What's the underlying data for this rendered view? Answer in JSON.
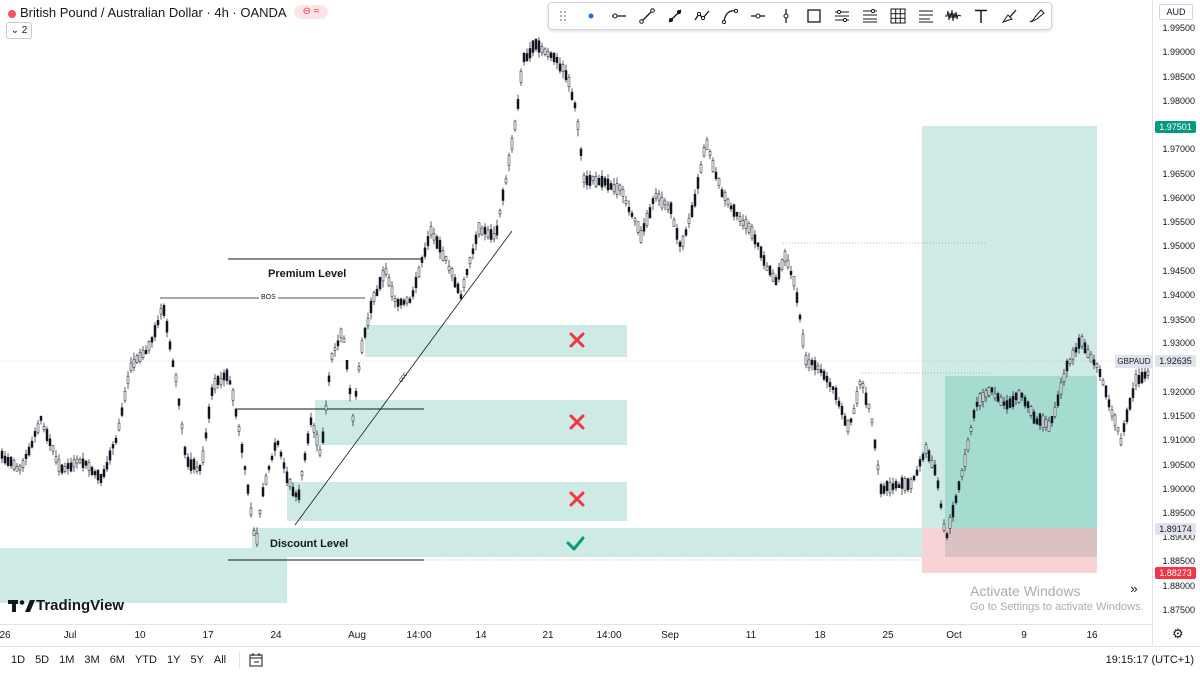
{
  "header": {
    "title": "British Pound / Australian Dollar · 4h · OANDA",
    "pill": "⊖ ≈",
    "indicator_count": "⌄ 2",
    "currency": "AUD"
  },
  "drawing_toolbar": {
    "tools": [
      "drag-handle-icon",
      "dot-icon",
      "horizontal-ray-icon",
      "trend-line-icon",
      "arrow-line-icon",
      "path-icon",
      "curve-icon",
      "horizontal-line-icon",
      "vertical-line-icon",
      "rectangle-icon",
      "parallel-channel-icon",
      "fib-retracement-icon",
      "grid-icon",
      "lines-icon",
      "pitchfork-icon",
      "text-icon",
      "brush-icon",
      "highlighter-icon"
    ]
  },
  "annotations": {
    "premium_level": "Premium Level",
    "discount_level": "Discount Level",
    "bos": "BOS",
    "trendline_label": "ccc"
  },
  "price_axis": {
    "labels": [
      "1.99500",
      "1.99000",
      "1.98500",
      "1.98000",
      "1.97000",
      "1.96500",
      "1.96000",
      "1.95500",
      "1.95000",
      "1.94500",
      "1.94000",
      "1.93500",
      "1.93000",
      "1.92000",
      "1.91500",
      "1.91000",
      "1.90500",
      "1.90000",
      "1.89500",
      "1.89000",
      "1.88500",
      "1.88000",
      "1.87500"
    ],
    "tags": {
      "target": "1.97501",
      "symbol": "GBPAUD",
      "current": "1.92635",
      "entry": "1.89174",
      "stop": "1.88273"
    }
  },
  "time_axis": {
    "labels": [
      "26",
      "Jul",
      "10",
      "17",
      "24",
      "Aug",
      "14:00",
      "14",
      "21",
      "14:00",
      "Sep",
      "11",
      "18",
      "25",
      "Oct",
      "9",
      "16"
    ]
  },
  "bottom_bar": {
    "ranges": [
      "1D",
      "5D",
      "1M",
      "3M",
      "6M",
      "YTD",
      "1Y",
      "5Y",
      "All"
    ],
    "clock": "19:15:17 (UTC+1)"
  },
  "watermark": {
    "title": "Activate Windows",
    "subtitle": "Go to Settings to activate Windows."
  },
  "brand": "TradingView",
  "colors": {
    "zone": "#cdeae4",
    "profit": "#cdeae4",
    "profit_dark": "#9fd7cc",
    "loss": "#f8d3d6",
    "cross": "#f23645",
    "check": "#089981",
    "target_tag": "#089981",
    "stop_tag": "#f23645",
    "candle": "#131722"
  }
}
